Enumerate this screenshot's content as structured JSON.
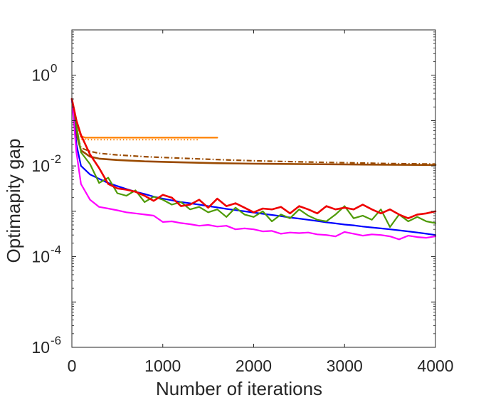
{
  "chart_data": {
    "type": "line",
    "xlabel": "Number of iterations",
    "ylabel": "Optimapity gap",
    "xlim": [
      0,
      4000
    ],
    "ylim": [
      1e-06,
      10
    ],
    "yscale": "log",
    "grid": false,
    "x_ticks": [
      0,
      1000,
      2000,
      3000,
      4000
    ],
    "x_tick_labels": [
      "0",
      "1000",
      "2000",
      "3000",
      "4000"
    ],
    "y_ticks": [
      1e-06,
      0.0001,
      0.01,
      1
    ],
    "y_tick_labels": [
      {
        "base": "10",
        "exp": "-6"
      },
      {
        "base": "10",
        "exp": "-4"
      },
      {
        "base": "10",
        "exp": "-2"
      },
      {
        "base": "10",
        "exp": "0"
      }
    ],
    "series": [
      {
        "color": "#ff8000",
        "style": "solid",
        "width": 2.2,
        "x": [
          0,
          50,
          100,
          150,
          200,
          400,
          800,
          1200,
          1600
        ],
        "y": [
          0.3,
          0.1,
          0.045,
          0.042,
          0.042,
          0.042,
          0.042,
          0.042,
          0.042
        ]
      },
      {
        "color": "#ff8000",
        "style": "dotted",
        "width": 2.2,
        "x": [
          0,
          50,
          100,
          200,
          400,
          800,
          1200,
          1400
        ],
        "y": [
          0.3,
          0.1,
          0.039,
          0.038,
          0.038,
          0.038,
          0.038,
          0.038
        ]
      },
      {
        "color": "#9a4a00",
        "style": "solid",
        "width": 2.6,
        "x": [
          0,
          50,
          100,
          200,
          300,
          500,
          800,
          1200,
          1600,
          2000,
          2500,
          3000,
          3500,
          4000
        ],
        "y": [
          0.3,
          0.05,
          0.022,
          0.016,
          0.0145,
          0.0135,
          0.0126,
          0.012,
          0.0115,
          0.0112,
          0.011,
          0.0108,
          0.0106,
          0.0105
        ]
      },
      {
        "color": "#9a4a00",
        "style": "dashdot",
        "width": 2.2,
        "x": [
          0,
          50,
          100,
          200,
          300,
          500,
          800,
          1200,
          1600,
          2000,
          2500,
          3000,
          3500,
          4000
        ],
        "y": [
          0.3,
          0.055,
          0.025,
          0.021,
          0.019,
          0.0175,
          0.016,
          0.0148,
          0.0138,
          0.013,
          0.0123,
          0.0118,
          0.0113,
          0.011
        ]
      },
      {
        "color": "#0000ff",
        "style": "solid",
        "width": 2.2,
        "x": [
          0,
          50,
          100,
          200,
          300,
          400,
          500,
          600,
          700,
          800,
          900,
          1000,
          1100,
          1200,
          1300,
          1400,
          1500,
          1600,
          1700,
          1800,
          1900,
          2000,
          2100,
          2200,
          2300,
          2400,
          2500,
          2600,
          2700,
          2800,
          2900,
          3000,
          3100,
          3200,
          3300,
          3400,
          3500,
          3600,
          3700,
          3800,
          3900,
          4000
        ],
        "y": [
          0.3,
          0.03,
          0.01,
          0.0065,
          0.0052,
          0.0042,
          0.0036,
          0.0031,
          0.0027,
          0.0024,
          0.0021,
          0.0019,
          0.00175,
          0.0016,
          0.0015,
          0.0014,
          0.0013,
          0.00122,
          0.00113,
          0.00106,
          0.001,
          0.00094,
          0.00088,
          0.00083,
          0.00078,
          0.00073,
          0.00069,
          0.00065,
          0.00061,
          0.00057,
          0.00054,
          0.00051,
          0.00049,
          0.00046,
          0.00044,
          0.00042,
          0.0004,
          0.00038,
          0.00036,
          0.00034,
          0.00032,
          0.0003
        ]
      },
      {
        "color": "#4e9a06",
        "style": "solid",
        "width": 2.2,
        "x": [
          0,
          100,
          200,
          300,
          400,
          500,
          600,
          700,
          800,
          900,
          1000,
          1100,
          1200,
          1300,
          1400,
          1500,
          1600,
          1700,
          1800,
          1900,
          2000,
          2100,
          2200,
          2300,
          2400,
          2500,
          2600,
          2700,
          2800,
          2900,
          3000,
          3100,
          3200,
          3300,
          3400,
          3500,
          3600,
          3700,
          3800,
          3900,
          4000
        ],
        "y": [
          0.3,
          0.02,
          0.011,
          0.0042,
          0.0055,
          0.0025,
          0.0022,
          0.0029,
          0.0016,
          0.0021,
          0.0018,
          0.0014,
          0.0016,
          0.0011,
          0.00125,
          0.00095,
          0.0011,
          0.00075,
          0.0012,
          0.00085,
          0.00075,
          0.001,
          0.0006,
          0.00085,
          0.0007,
          0.0011,
          0.0008,
          0.00065,
          0.0006,
          0.00085,
          0.0013,
          0.0007,
          0.0008,
          0.00065,
          0.0011,
          0.00045,
          0.00085,
          0.0006,
          0.00075,
          0.0006,
          0.00055
        ]
      },
      {
        "color": "#ff00ff",
        "style": "solid",
        "width": 2.2,
        "x": [
          0,
          50,
          100,
          200,
          300,
          400,
          500,
          600,
          700,
          800,
          900,
          1000,
          1100,
          1200,
          1300,
          1400,
          1500,
          1600,
          1700,
          1800,
          1900,
          2000,
          2100,
          2200,
          2300,
          2400,
          2500,
          2600,
          2700,
          2800,
          2900,
          3000,
          3100,
          3200,
          3300,
          3400,
          3500,
          3600,
          3700,
          3800,
          3900,
          4000
        ],
        "y": [
          0.3,
          0.02,
          0.004,
          0.0018,
          0.00125,
          0.00115,
          0.00105,
          0.00095,
          0.0009,
          0.00085,
          0.0008,
          0.00058,
          0.0006,
          0.00055,
          0.00052,
          0.00048,
          0.0005,
          0.00046,
          0.00048,
          0.0004,
          0.00042,
          0.0004,
          0.00036,
          0.00037,
          0.00032,
          0.00034,
          0.00033,
          0.00034,
          0.00031,
          0.0003,
          0.00028,
          0.00035,
          0.00032,
          0.00029,
          0.00031,
          0.0003,
          0.00028,
          0.00024,
          0.00029,
          0.00027,
          0.00026,
          0.00028
        ]
      },
      {
        "color": "#ee0000",
        "style": "solid",
        "width": 2.6,
        "x": [
          0,
          50,
          100,
          200,
          300,
          400,
          500,
          600,
          700,
          800,
          900,
          1000,
          1100,
          1200,
          1300,
          1400,
          1500,
          1600,
          1700,
          1800,
          1900,
          2000,
          2100,
          2200,
          2300,
          2400,
          2500,
          2600,
          2700,
          2800,
          2900,
          3000,
          3100,
          3200,
          3300,
          3400,
          3500,
          3600,
          3700,
          3800,
          3900,
          4000
        ],
        "y": [
          0.3,
          0.1,
          0.048,
          0.018,
          0.009,
          0.004,
          0.0032,
          0.003,
          0.0027,
          0.0022,
          0.0017,
          0.0023,
          0.002,
          0.0013,
          0.0014,
          0.0018,
          0.0012,
          0.0019,
          0.0013,
          0.0015,
          0.0012,
          0.00095,
          0.00115,
          0.0011,
          0.00125,
          0.0009,
          0.0013,
          0.0011,
          0.0009,
          0.0013,
          0.0011,
          0.0012,
          0.0011,
          0.0014,
          0.0011,
          0.0009,
          0.0011,
          0.00085,
          0.0007,
          0.00085,
          0.0009,
          0.001
        ]
      }
    ]
  }
}
